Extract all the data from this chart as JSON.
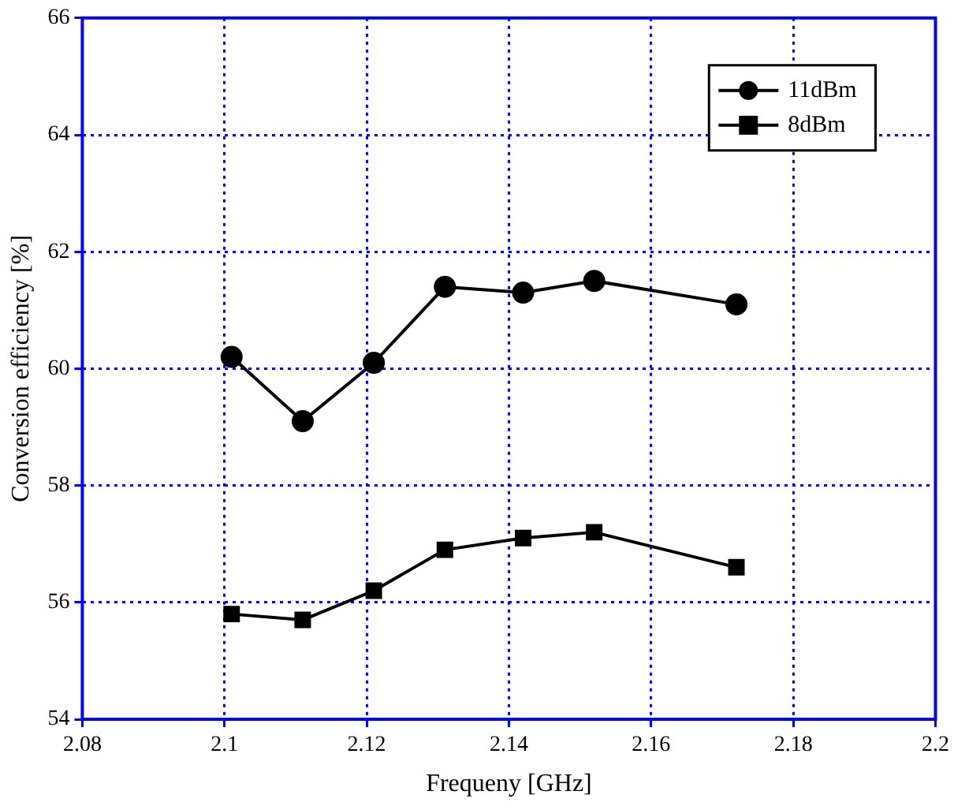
{
  "chart_data": {
    "type": "line",
    "xlabel": "Frequeny [GHz]",
    "ylabel": "Conversion efficiency [%]",
    "xlim": [
      2.08,
      2.2
    ],
    "xticks": [
      2.08,
      2.1,
      2.12,
      2.14,
      2.16,
      2.18,
      2.2
    ],
    "ylim": [
      54,
      66
    ],
    "yticks": [
      54,
      56,
      58,
      60,
      62,
      64,
      66
    ],
    "grid": true,
    "legend": "top right",
    "line_style": "solid",
    "x": [
      2.101,
      2.111,
      2.121,
      2.131,
      2.142,
      2.152,
      2.172
    ],
    "series": [
      {
        "name": "11dBm",
        "color": "#000000",
        "marker": "circle",
        "values": [
          60.2,
          59.1,
          60.1,
          61.4,
          61.3,
          61.5,
          61.1
        ]
      },
      {
        "name": "8dBm",
        "color": "#000000",
        "marker": "square",
        "values": [
          55.8,
          55.7,
          56.2,
          56.9,
          57.1,
          57.2,
          56.6
        ]
      }
    ]
  }
}
